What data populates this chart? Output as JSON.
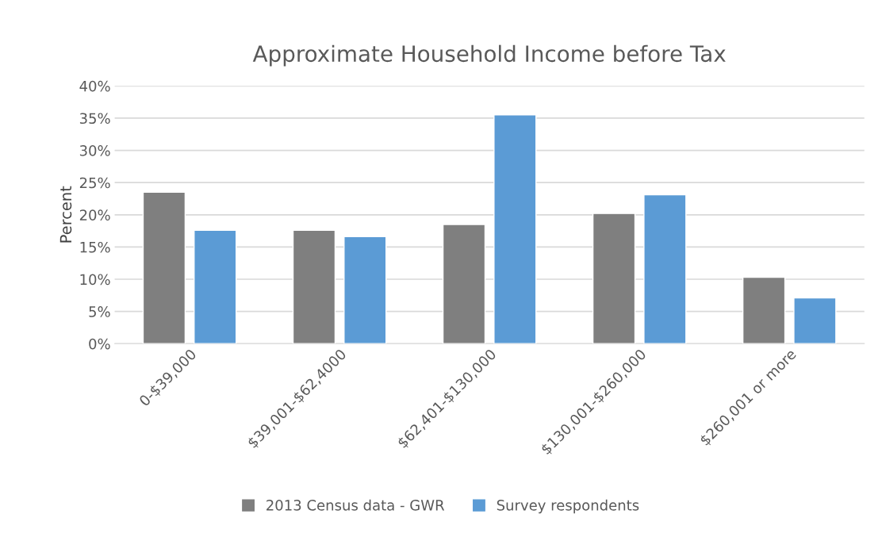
{
  "chart_data": {
    "type": "bar",
    "title": "Approximate Household Income before Tax",
    "ylabel": "Percent",
    "categories": [
      "0-$39,000",
      "$39,001-$62,4000",
      "$62,401-$130,000",
      "$130,001-$260,000",
      "$260,001 or more"
    ],
    "series": [
      {
        "name": "2013 Census data - GWR",
        "color": "#7f7f7f",
        "values": [
          23.5,
          17.6,
          18.5,
          20.2,
          10.3
        ]
      },
      {
        "name": "Survey respondents",
        "color": "#5b9bd5",
        "values": [
          17.6,
          16.6,
          35.5,
          23.1,
          7.1
        ]
      }
    ],
    "ylim": [
      0,
      40
    ],
    "yticks": [
      {
        "value": 0,
        "label": "0%"
      },
      {
        "value": 5,
        "label": "5%"
      },
      {
        "value": 10,
        "label": "10%"
      },
      {
        "value": 15,
        "label": "15%"
      },
      {
        "value": 20,
        "label": "20%"
      },
      {
        "value": 25,
        "label": "25%"
      },
      {
        "value": 30,
        "label": "30%"
      },
      {
        "value": 35,
        "label": "35%"
      },
      {
        "value": 40,
        "label": "40%"
      }
    ],
    "grid": "y",
    "legend": "bottom"
  }
}
